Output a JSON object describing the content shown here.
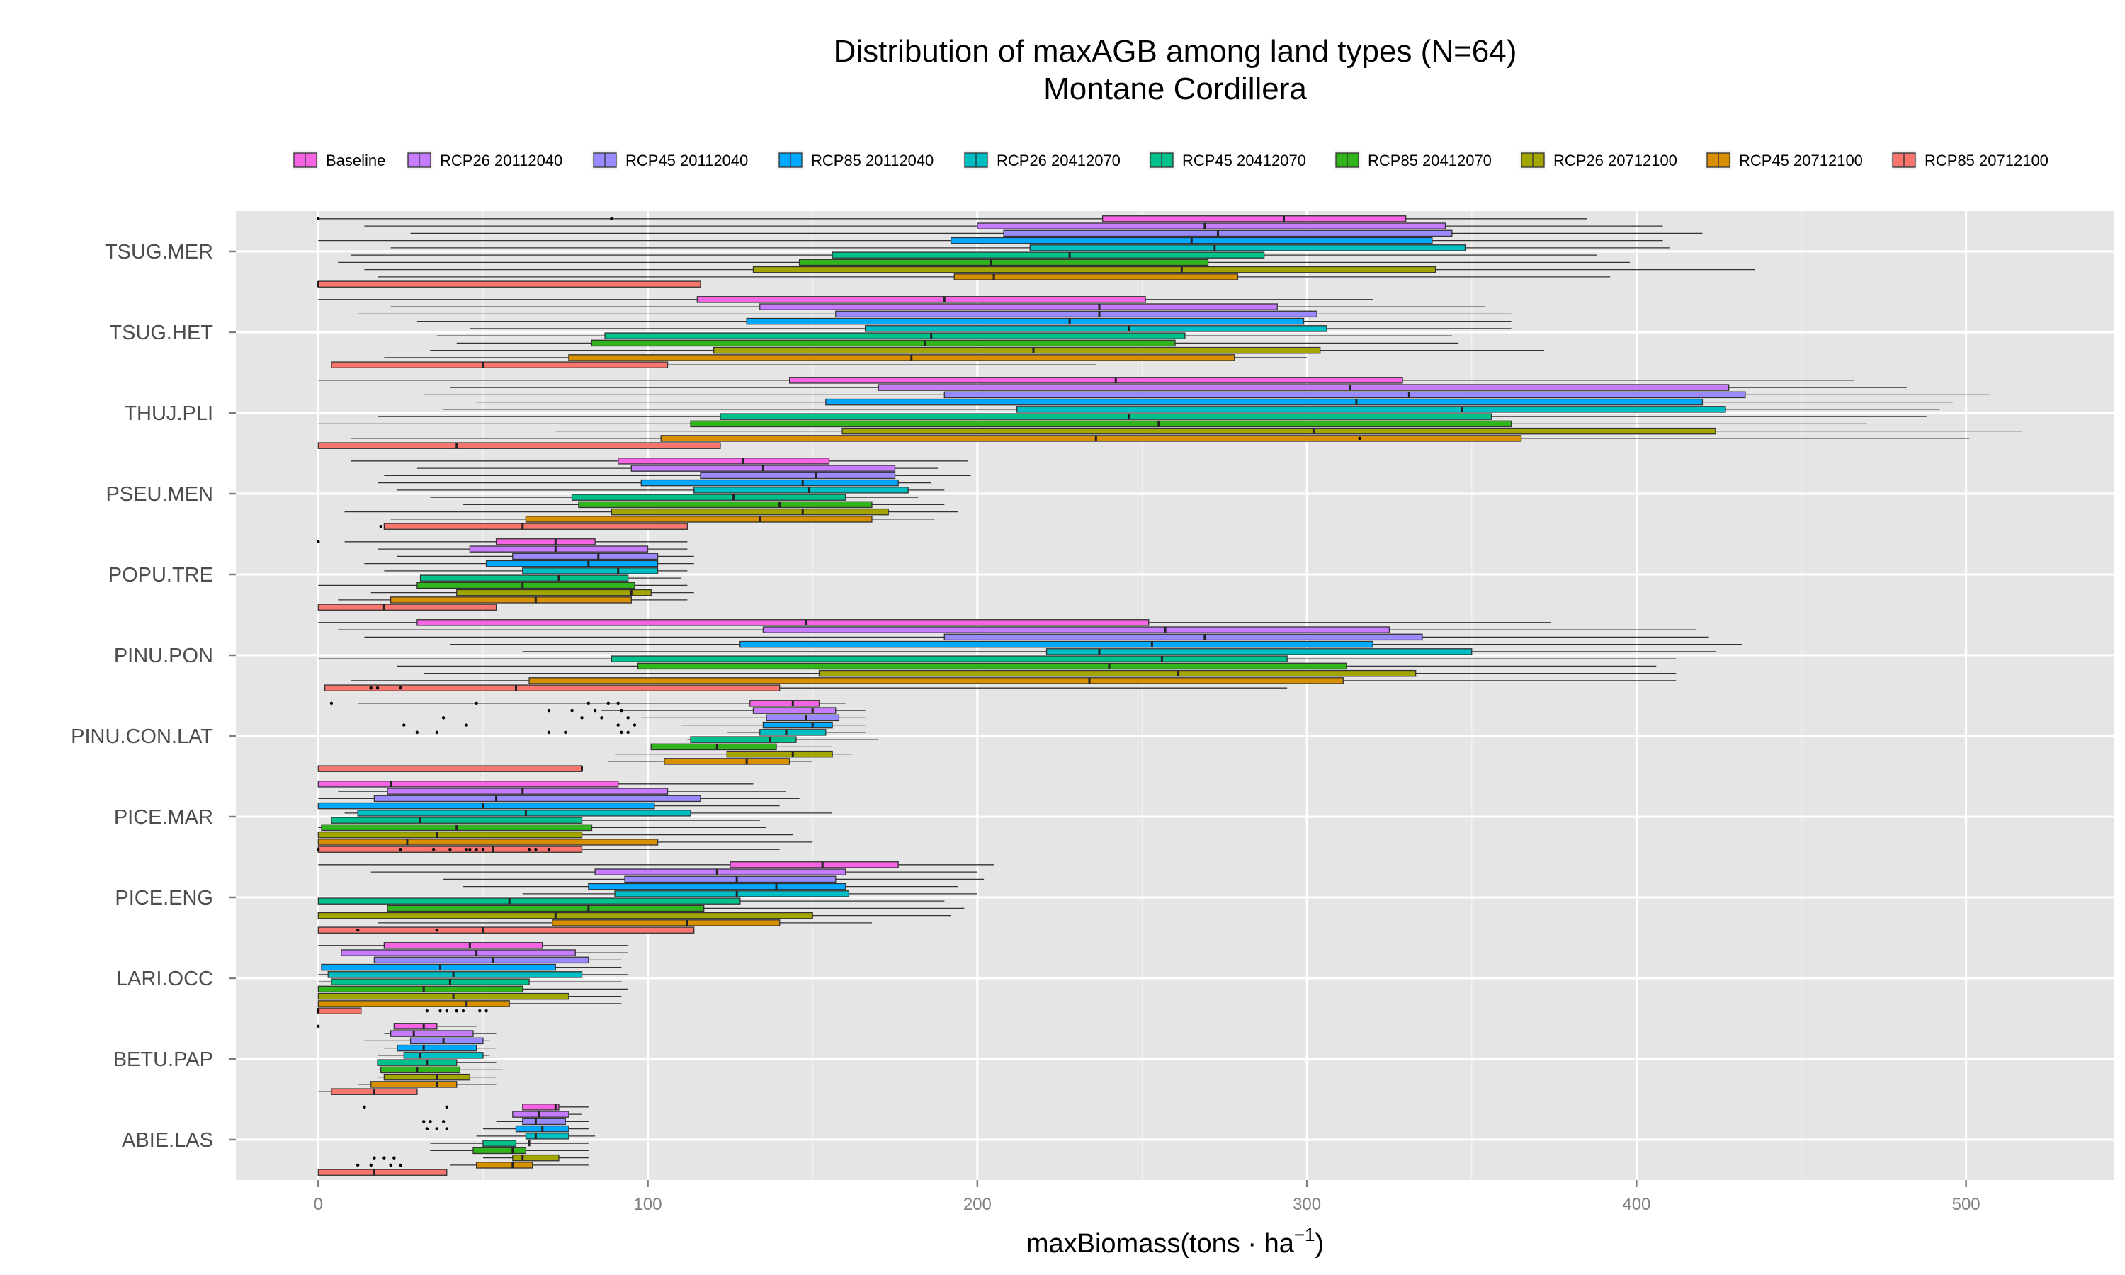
{
  "chart_data": {
    "type": "boxplot",
    "orientation": "horizontal",
    "title": "Distribution of maxAGB among land types (N=64)",
    "subtitle": "Montane Cordillera",
    "xlabel": "maxBiomass(tons · ha",
    "xlabel_sup": "−1",
    "xlabel_close": ")",
    "xlim": [
      -25,
      545
    ],
    "xticks": [
      0,
      100,
      200,
      300,
      400,
      500
    ],
    "grid": true,
    "legend_position": "top",
    "series": [
      {
        "name": "Baseline",
        "color": "#F564E3"
      },
      {
        "name": "RCP26 20112040",
        "color": "#C77CFF"
      },
      {
        "name": "RCP45 20112040",
        "color": "#9A8AFF"
      },
      {
        "name": "RCP85 20112040",
        "color": "#00A9FF"
      },
      {
        "name": "RCP26 20412070",
        "color": "#00BFC4"
      },
      {
        "name": "RCP45 20412070",
        "color": "#00C08B"
      },
      {
        "name": "RCP85 20412070",
        "color": "#32B51C"
      },
      {
        "name": "RCP26 20712100",
        "color": "#A3A500"
      },
      {
        "name": "RCP45 20712100",
        "color": "#D89000"
      },
      {
        "name": "RCP85 20712100",
        "color": "#F8766D"
      }
    ],
    "categories": [
      "TSUG.MER",
      "TSUG.HET",
      "THUJ.PLI",
      "PSEU.MEN",
      "POPU.TRE",
      "PINU.PON",
      "PINU.CON.LAT",
      "PICE.MAR",
      "PICE.ENG",
      "LARI.OCC",
      "BETU.PAP",
      "ABIE.LAS"
    ],
    "boxes": [
      [
        [
          0,
          238,
          293,
          330,
          385
        ],
        [
          14,
          200,
          269,
          342,
          408
        ],
        [
          28,
          208,
          273,
          344,
          420
        ],
        [
          0,
          192,
          265,
          338,
          408
        ],
        [
          22,
          216,
          272,
          348,
          410
        ],
        [
          10,
          156,
          228,
          287,
          388
        ],
        [
          6,
          146,
          204,
          270,
          398
        ],
        [
          14,
          132,
          262,
          339,
          436
        ],
        [
          18,
          193,
          205,
          279,
          392
        ],
        [
          0,
          0,
          0,
          116,
          116
        ]
      ],
      [
        [
          0,
          115,
          190,
          251,
          320
        ],
        [
          22,
          134,
          237,
          291,
          354
        ],
        [
          12,
          157,
          237,
          303,
          362
        ],
        [
          30,
          130,
          228,
          299,
          362
        ],
        [
          46,
          166,
          246,
          306,
          362
        ],
        [
          36,
          87,
          186,
          263,
          344
        ],
        [
          42,
          83,
          184,
          260,
          346
        ],
        [
          34,
          120,
          217,
          304,
          372
        ],
        [
          20,
          76,
          180,
          278,
          300
        ],
        [
          4,
          4,
          50,
          106,
          236
        ]
      ],
      [
        [
          0,
          143,
          242,
          329,
          466
        ],
        [
          40,
          170,
          313,
          428,
          482
        ],
        [
          32,
          190,
          331,
          433,
          507
        ],
        [
          48,
          154,
          315,
          420,
          496
        ],
        [
          38,
          212,
          347,
          427,
          492
        ],
        [
          18,
          122,
          246,
          356,
          488
        ],
        [
          0,
          113,
          255,
          362,
          470
        ],
        [
          72,
          159,
          302,
          424,
          517
        ],
        [
          10,
          104,
          236,
          365,
          501
        ],
        [
          0,
          0,
          42,
          122,
          122
        ]
      ],
      [
        [
          10,
          91,
          129,
          155,
          197
        ],
        [
          30,
          95,
          135,
          175,
          188
        ],
        [
          20,
          116,
          151,
          175,
          198
        ],
        [
          18,
          98,
          147,
          176,
          186
        ],
        [
          24,
          114,
          149,
          179,
          190
        ],
        [
          34,
          77,
          126,
          160,
          182
        ],
        [
          44,
          79,
          140,
          168,
          190
        ],
        [
          8,
          89,
          147,
          173,
          194
        ],
        [
          22,
          63,
          134,
          168,
          187
        ],
        [
          20,
          20,
          62,
          112,
          112
        ]
      ],
      [
        [
          8,
          54,
          72,
          84,
          112
        ],
        [
          18,
          46,
          72,
          100,
          112
        ],
        [
          24,
          59,
          85,
          103,
          114
        ],
        [
          14,
          51,
          82,
          103,
          114
        ],
        [
          20,
          62,
          91,
          103,
          112
        ],
        [
          32,
          31,
          73,
          94,
          110
        ],
        [
          0,
          30,
          62,
          96,
          112
        ],
        [
          16,
          42,
          95,
          101,
          114
        ],
        [
          6,
          22,
          66,
          95,
          112
        ],
        [
          0,
          0,
          20,
          54,
          54
        ]
      ],
      [
        [
          0,
          30,
          148,
          252,
          374
        ],
        [
          6,
          135,
          257,
          325,
          418
        ],
        [
          14,
          190,
          269,
          335,
          422
        ],
        [
          40,
          128,
          253,
          320,
          432
        ],
        [
          62,
          221,
          237,
          350,
          424
        ],
        [
          0,
          89,
          256,
          294,
          412
        ],
        [
          24,
          97,
          240,
          312,
          406
        ],
        [
          32,
          152,
          261,
          333,
          412
        ],
        [
          10,
          64,
          234,
          311,
          412
        ],
        [
          2,
          2,
          60,
          140,
          294
        ]
      ],
      [
        [
          12,
          131,
          144,
          152,
          160
        ],
        [
          86,
          132,
          150,
          157,
          166
        ],
        [
          98,
          136,
          148,
          158,
          166
        ],
        [
          110,
          135,
          150,
          156,
          166
        ],
        [
          124,
          134,
          142,
          154,
          166
        ],
        [
          112,
          113,
          137,
          145,
          170
        ],
        [
          104,
          101,
          121,
          139,
          156
        ],
        [
          90,
          124,
          144,
          156,
          162
        ],
        [
          88,
          105,
          130,
          143,
          150
        ],
        [
          0,
          0,
          80,
          80,
          80
        ]
      ],
      [
        [
          0,
          0,
          22,
          91,
          132
        ],
        [
          6,
          21,
          62,
          106,
          142
        ],
        [
          0,
          17,
          54,
          116,
          146
        ],
        [
          6,
          0,
          50,
          102,
          140
        ],
        [
          8,
          12,
          63,
          113,
          156
        ],
        [
          24,
          4,
          31,
          80,
          134
        ],
        [
          0,
          1,
          42,
          83,
          136
        ],
        [
          0,
          0,
          36,
          80,
          144
        ],
        [
          8,
          0,
          27,
          103,
          150
        ],
        [
          6,
          0,
          53,
          80,
          140
        ]
      ],
      [
        [
          0,
          125,
          153,
          176,
          205
        ],
        [
          16,
          84,
          121,
          160,
          200
        ],
        [
          38,
          93,
          127,
          157,
          202
        ],
        [
          44,
          82,
          139,
          160,
          194
        ],
        [
          62,
          90,
          127,
          161,
          200
        ],
        [
          0,
          0,
          58,
          128,
          190
        ],
        [
          30,
          21,
          82,
          117,
          196
        ],
        [
          0,
          0,
          72,
          150,
          192
        ],
        [
          18,
          71,
          112,
          140,
          168
        ],
        [
          0,
          0,
          50,
          114,
          114
        ]
      ],
      [
        [
          0,
          20,
          46,
          68,
          94
        ],
        [
          10,
          7,
          48,
          78,
          94
        ],
        [
          36,
          17,
          53,
          82,
          92
        ],
        [
          24,
          1,
          37,
          72,
          92
        ],
        [
          0,
          3,
          41,
          80,
          94
        ],
        [
          0,
          4,
          40,
          64,
          92
        ],
        [
          2,
          0,
          32,
          62,
          94
        ],
        [
          4,
          0,
          41,
          76,
          92
        ],
        [
          0,
          0,
          45,
          58,
          92
        ],
        [
          0,
          0,
          0,
          13,
          13
        ]
      ],
      [
        [
          24,
          23,
          32,
          36,
          48
        ],
        [
          20,
          22,
          29,
          47,
          54
        ],
        [
          14,
          28,
          38,
          50,
          52
        ],
        [
          20,
          24,
          32,
          48,
          54
        ],
        [
          18,
          26,
          31,
          50,
          52
        ],
        [
          26,
          18,
          33,
          42,
          54
        ],
        [
          18,
          19,
          30,
          43,
          56
        ],
        [
          18,
          20,
          36,
          46,
          54
        ],
        [
          12,
          16,
          36,
          42,
          54
        ],
        [
          0,
          4,
          17,
          30,
          30
        ]
      ],
      [
        [
          68,
          62,
          72,
          73,
          82
        ],
        [
          62,
          59,
          67,
          76,
          80
        ],
        [
          54,
          62,
          66,
          75,
          82
        ],
        [
          50,
          60,
          68,
          76,
          82
        ],
        [
          48,
          63,
          66,
          76,
          84
        ],
        [
          34,
          50,
          64,
          60,
          82
        ],
        [
          34,
          47,
          59,
          63,
          82
        ],
        [
          50,
          59,
          62,
          73,
          82
        ],
        [
          40,
          48,
          59,
          65,
          82
        ],
        [
          0,
          0,
          17,
          39,
          39
        ]
      ]
    ],
    "outliers": [
      {
        "cat": 0,
        "series": 0,
        "values": [
          0,
          89
        ]
      },
      {
        "cat": 3,
        "series": 9,
        "values": [
          19
        ]
      },
      {
        "cat": 2,
        "series": 8,
        "values": [
          316
        ]
      },
      {
        "cat": 4,
        "series": 0,
        "values": [
          0
        ]
      },
      {
        "cat": 5,
        "series": 9,
        "values": [
          16,
          18,
          25
        ]
      },
      {
        "cat": 6,
        "series": 0,
        "values": [
          4,
          48,
          82,
          88,
          91
        ]
      },
      {
        "cat": 6,
        "series": 1,
        "values": [
          70,
          77,
          84,
          92
        ]
      },
      {
        "cat": 6,
        "series": 2,
        "values": [
          38,
          80,
          86,
          94
        ]
      },
      {
        "cat": 6,
        "series": 3,
        "values": [
          26,
          45,
          91,
          96
        ]
      },
      {
        "cat": 6,
        "series": 4,
        "values": [
          30,
          36,
          70,
          75,
          92,
          94
        ]
      },
      {
        "cat": 7,
        "series": 9,
        "values": [
          0,
          25,
          35,
          40,
          45,
          46,
          48,
          50,
          64,
          66,
          70
        ]
      },
      {
        "cat": 9,
        "series": 9,
        "values": [
          0,
          33,
          37,
          39,
          42,
          44,
          49,
          51
        ]
      },
      {
        "cat": 10,
        "series": 0,
        "values": [
          0
        ]
      },
      {
        "cat": 11,
        "series": 0,
        "values": [
          14,
          39
        ]
      },
      {
        "cat": 11,
        "series": 2,
        "values": [
          32,
          34,
          38
        ]
      },
      {
        "cat": 11,
        "series": 3,
        "values": [
          33,
          36,
          39
        ]
      },
      {
        "cat": 11,
        "series": 7,
        "values": [
          17,
          20,
          23
        ]
      },
      {
        "cat": 11,
        "series": 8,
        "values": [
          12,
          16,
          22,
          25
        ]
      },
      {
        "cat": 8,
        "series": 9,
        "values": [
          12,
          36
        ]
      }
    ]
  }
}
